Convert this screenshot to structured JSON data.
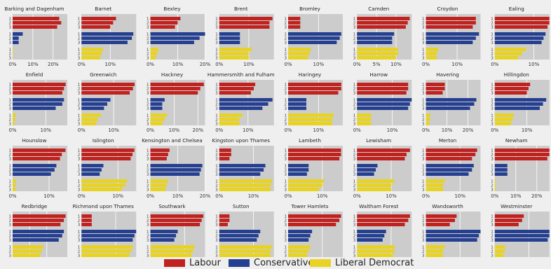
{
  "chart_data": {
    "type": "bar",
    "orientation": "horizontal",
    "grid": true,
    "legend_placement": "bottom",
    "rank_labels": [
      "1",
      "2",
      "3"
    ],
    "series": [
      {
        "name": "Labour",
        "color": "#c0221f"
      },
      {
        "name": "Conservative",
        "color": "#253f91"
      },
      {
        "name": "Liberal Democrat",
        "color": "#e8d323"
      }
    ],
    "panels": [
      {
        "title": "Barking and Dagenham",
        "xlim": [
          0,
          27
        ],
        "xticks": [
          0,
          10,
          20
        ],
        "tick_labels": [
          "0%",
          "10%",
          "20%"
        ],
        "labour": [
          23,
          24,
          22
        ],
        "conservative": [
          5,
          3,
          3
        ],
        "libdem": [
          0.3,
          0.3,
          0.2
        ]
      },
      {
        "title": "Barnet",
        "xlim": [
          0,
          19
        ],
        "xticks": [
          0,
          10
        ],
        "tick_labels": [
          "0%",
          "10%"
        ],
        "labour": [
          12,
          11,
          10
        ],
        "conservative": [
          18,
          17.5,
          16
        ],
        "libdem": [
          7.5,
          7,
          6.5
        ]
      },
      {
        "title": "Bexley",
        "xlim": [
          0,
          20
        ],
        "xticks": [
          0,
          10,
          20
        ],
        "tick_labels": [
          "0%",
          "10%",
          "20%"
        ],
        "labour": [
          11,
          10,
          9
        ],
        "conservative": [
          20,
          18,
          16
        ],
        "libdem": [
          3,
          2.5,
          2
        ]
      },
      {
        "title": "Brent",
        "xlim": [
          0,
          18.5
        ],
        "xticks": [
          0,
          10
        ],
        "tick_labels": [
          "0%",
          "10%"
        ],
        "labour": [
          18,
          17,
          17
        ],
        "conservative": [
          7,
          7,
          7
        ],
        "libdem": [
          11,
          10,
          10
        ]
      },
      {
        "title": "Bromley",
        "xlim": [
          0,
          18
        ],
        "xticks": [
          0,
          10
        ],
        "tick_labels": [
          "0%",
          "10%"
        ],
        "labour": [
          4,
          4,
          4
        ],
        "conservative": [
          17.5,
          17,
          16
        ],
        "libdem": [
          7.5,
          7,
          6.5
        ]
      },
      {
        "title": "Camden",
        "xlim": [
          0,
          14
        ],
        "xticks": [
          0,
          5,
          10
        ],
        "tick_labels": [
          "0%",
          "5%",
          "10%"
        ],
        "labour": [
          13.5,
          13,
          12.5
        ],
        "conservative": [
          9.5,
          9,
          9
        ],
        "libdem": [
          10.5,
          10.5,
          10
        ]
      },
      {
        "title": "Croydon",
        "xlim": [
          0,
          17.5
        ],
        "xticks": [
          0,
          10
        ],
        "tick_labels": [
          "0%",
          "10%"
        ],
        "labour": [
          16,
          16,
          15
        ],
        "conservative": [
          17,
          16,
          15
        ],
        "libdem": [
          4,
          3.5,
          3.5
        ]
      },
      {
        "title": "Ealing",
        "xlim": [
          0,
          14
        ],
        "xticks": [
          0,
          10
        ],
        "tick_labels": [
          "0%",
          "10%"
        ],
        "labour": [
          14,
          14,
          13.5
        ],
        "conservative": [
          13,
          12.5,
          12
        ],
        "libdem": [
          8,
          7,
          6
        ]
      },
      {
        "title": "Enfield",
        "xlim": [
          0,
          16.5
        ],
        "xticks": [
          0,
          10
        ],
        "tick_labels": [
          "0%",
          "10%"
        ],
        "labour": [
          16,
          15.5,
          15
        ],
        "conservative": [
          15.5,
          15,
          13
        ],
        "libdem": [
          1,
          0.8,
          0.5
        ]
      },
      {
        "title": "Greenwich",
        "xlim": [
          0,
          17
        ],
        "xticks": [
          0,
          10
        ],
        "tick_labels": [
          "0%",
          "10%"
        ],
        "labour": [
          16.5,
          16,
          15
        ],
        "conservative": [
          9,
          8,
          7
        ],
        "libdem": [
          6,
          5,
          4.5
        ]
      },
      {
        "title": "Hackney",
        "xlim": [
          0,
          23
        ],
        "xticks": [
          0,
          10,
          20
        ],
        "tick_labels": [
          "0%",
          "10%",
          "20%"
        ],
        "labour": [
          22.5,
          21,
          20
        ],
        "conservative": [
          6,
          5,
          5
        ],
        "libdem": [
          7,
          6,
          5
        ]
      },
      {
        "title": "Hammersmith and Fulham",
        "xlim": [
          0,
          19
        ],
        "xticks": [
          0,
          10
        ],
        "tick_labels": [
          "0%",
          "10%"
        ],
        "labour": [
          12.5,
          12,
          11
        ],
        "conservative": [
          18.5,
          17,
          15
        ],
        "libdem": [
          8,
          7,
          7
        ]
      },
      {
        "title": "Haringey",
        "xlim": [
          0,
          18
        ],
        "xticks": [
          0,
          10
        ],
        "tick_labels": [
          "0%",
          "10%"
        ],
        "labour": [
          17.5,
          17.5,
          16.5
        ],
        "conservative": [
          6,
          6,
          6
        ],
        "libdem": [
          15,
          14.5,
          14.5
        ]
      },
      {
        "title": "Harrow",
        "xlim": [
          0,
          15.5
        ],
        "xticks": [
          0,
          10
        ],
        "tick_labels": [
          "0%",
          "10%"
        ],
        "labour": [
          14.5,
          14.5,
          14
        ],
        "conservative": [
          15.5,
          15,
          14.5
        ],
        "libdem": [
          4,
          4,
          4
        ]
      },
      {
        "title": "Havering",
        "xlim": [
          0,
          26
        ],
        "xticks": [
          0,
          10,
          20
        ],
        "tick_labels": [
          "0%",
          "10%",
          "20%"
        ],
        "labour": [
          9,
          9,
          8
        ],
        "conservative": [
          24,
          23,
          21
        ],
        "libdem": [
          2,
          2,
          1.5
        ]
      },
      {
        "title": "Hillingdon",
        "xlim": [
          0,
          17
        ],
        "xticks": [
          0,
          10
        ],
        "tick_labels": [
          "0%",
          "10%"
        ],
        "labour": [
          11,
          10.5,
          10
        ],
        "conservative": [
          16,
          15,
          14
        ],
        "libdem": [
          6,
          5.5,
          5
        ]
      },
      {
        "title": "Hounslow",
        "xlim": [
          0,
          15
        ],
        "xticks": [
          0,
          10
        ],
        "tick_labels": [
          "0%",
          "10%"
        ],
        "labour": [
          14.5,
          13.5,
          13
        ],
        "conservative": [
          12,
          11.5,
          10.5
        ],
        "libdem": [
          1,
          0.8,
          0.8
        ]
      },
      {
        "title": "Islington",
        "xlim": [
          0,
          15
        ],
        "xticks": [
          0,
          10
        ],
        "tick_labels": [
          "0%",
          "10%"
        ],
        "labour": [
          14.5,
          14,
          13.5
        ],
        "conservative": [
          6,
          5.5,
          5
        ],
        "libdem": [
          12.5,
          12,
          11
        ]
      },
      {
        "title": "Kensington and Chelsea",
        "xlim": [
          0,
          20
        ],
        "xticks": [
          0,
          10,
          20
        ],
        "tick_labels": [
          "0%",
          "10%",
          "20%"
        ],
        "labour": [
          7,
          6.5,
          6
        ],
        "conservative": [
          19,
          18.5,
          18
        ],
        "libdem": [
          6.5,
          6,
          5.5
        ]
      },
      {
        "title": "Kingston upon Thames",
        "xlim": [
          0,
          16
        ],
        "xticks": [
          0,
          10
        ],
        "tick_labels": [
          "0%",
          "10%"
        ],
        "labour": [
          3.5,
          3.5,
          3
        ],
        "conservative": [
          13.5,
          13,
          12
        ],
        "libdem": [
          15.5,
          15,
          15
        ]
      },
      {
        "title": "Lambeth",
        "xlim": [
          0,
          16
        ],
        "xticks": [
          0,
          10
        ],
        "tick_labels": [
          "0%",
          "10%"
        ],
        "labour": [
          15.5,
          15.5,
          15
        ],
        "conservative": [
          6,
          6,
          5.5
        ],
        "libdem": [
          10.5,
          10,
          9
        ]
      },
      {
        "title": "Lewisham",
        "xlim": [
          0,
          16
        ],
        "xticks": [
          0,
          10
        ],
        "tick_labels": [
          "0%",
          "10%"
        ],
        "labour": [
          15.5,
          14.5,
          14
        ],
        "conservative": [
          6,
          5.5,
          5
        ],
        "libdem": [
          11,
          10,
          10
        ]
      },
      {
        "title": "Merton",
        "xlim": [
          0,
          16
        ],
        "xticks": [
          0,
          10
        ],
        "tick_labels": [
          "0%",
          "10%"
        ],
        "labour": [
          15,
          14.5,
          13.5
        ],
        "conservative": [
          14,
          13.5,
          12.5
        ],
        "libdem": [
          5.5,
          5,
          5
        ]
      },
      {
        "title": "Newham",
        "xlim": [
          0,
          26
        ],
        "xticks": [
          0,
          10,
          20
        ],
        "tick_labels": [
          "0%",
          "10%",
          "20%"
        ],
        "labour": [
          26,
          26,
          25
        ],
        "conservative": [
          6,
          6,
          6
        ],
        "libdem": [
          0.5,
          0.5,
          0.5
        ]
      },
      {
        "title": "Redbridge",
        "xlim": [
          0,
          16
        ],
        "xticks": [
          0,
          5,
          10
        ],
        "tick_labels": [
          "0%",
          "5%",
          "10%"
        ],
        "labour": [
          15.5,
          15,
          14
        ],
        "conservative": [
          15,
          14.5,
          13.5
        ],
        "libdem": [
          9,
          8.5,
          8
        ]
      },
      {
        "title": "Richmond upon Thames",
        "xlim": [
          0,
          16
        ],
        "xticks": [
          0,
          10
        ],
        "tick_labels": [
          "0%",
          "10%"
        ],
        "labour": [
          3,
          3,
          3
        ],
        "conservative": [
          16,
          15.5,
          15
        ],
        "libdem": [
          15,
          14.5,
          14
        ]
      },
      {
        "title": "Southwark",
        "xlim": [
          0,
          16
        ],
        "xticks": [
          0,
          10
        ],
        "tick_labels": [
          "0%",
          "10%"
        ],
        "labour": [
          15.5,
          15,
          14.5
        ],
        "conservative": [
          8,
          7.5,
          7
        ],
        "libdem": [
          13,
          12.5,
          12
        ]
      },
      {
        "title": "Sutton",
        "xlim": [
          0,
          16
        ],
        "xticks": [
          0,
          10
        ],
        "tick_labels": [
          "0%",
          "10%"
        ],
        "labour": [
          3,
          3,
          2.5
        ],
        "conservative": [
          12,
          11.5,
          11
        ],
        "libdem": [
          15.5,
          15,
          15
        ]
      },
      {
        "title": "Tower Hamlets",
        "xlim": [
          0,
          16
        ],
        "xticks": [
          0,
          10
        ],
        "tick_labels": [
          "0%",
          "10%"
        ],
        "labour": [
          15.5,
          15,
          14
        ],
        "conservative": [
          7,
          6.5,
          6
        ],
        "libdem": [
          6.5,
          6,
          5.5
        ]
      },
      {
        "title": "Waltham Forest",
        "xlim": [
          0,
          16
        ],
        "xticks": [
          0,
          10
        ],
        "tick_labels": [
          "0%",
          "10%"
        ],
        "labour": [
          15.5,
          15,
          14
        ],
        "conservative": [
          8.5,
          8,
          7.5
        ],
        "libdem": [
          11,
          11,
          10.5
        ]
      },
      {
        "title": "Wandsworth",
        "xlim": [
          0,
          16
        ],
        "xticks": [
          0,
          10
        ],
        "tick_labels": [
          "0%",
          "10%"
        ],
        "labour": [
          9,
          8.5,
          7
        ],
        "conservative": [
          16,
          15.5,
          15
        ],
        "libdem": [
          5.5,
          5,
          5
        ]
      },
      {
        "title": "Westminster",
        "xlim": [
          0,
          16
        ],
        "xticks": [
          0,
          10
        ],
        "tick_labels": [
          "0%",
          "10%"
        ],
        "labour": [
          8.5,
          8,
          7
        ],
        "conservative": [
          16,
          16,
          15.5
        ],
        "libdem": [
          3,
          3,
          2.5
        ]
      }
    ]
  }
}
